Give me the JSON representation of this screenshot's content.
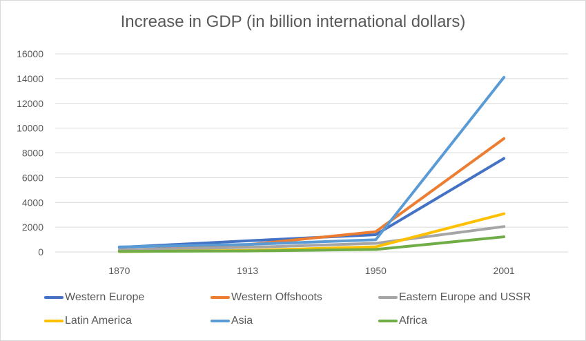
{
  "chart_data": {
    "type": "line",
    "title": "Increase in GDP (in billion international dollars)",
    "xlabel": "",
    "ylabel": "",
    "categories": [
      "1870",
      "1913",
      "1950",
      "2001"
    ],
    "ylim": [
      0,
      16000
    ],
    "yticks": [
      "0",
      "2000",
      "4000",
      "6000",
      "8000",
      "10000",
      "12000",
      "14000",
      "16000"
    ],
    "grid": true,
    "legend_position": "bottom",
    "series": [
      {
        "name": "Western Europe",
        "color": "#4472C4",
        "values": [
          367,
          902,
          1396,
          7550
        ]
      },
      {
        "name": "Western Offshoots",
        "color": "#ED7D31",
        "values": [
          111,
          582,
          1635,
          9156
        ]
      },
      {
        "name": "Eastern Europe and USSR",
        "color": "#A5A5A5",
        "values": [
          172,
          367,
          696,
          2053
        ]
      },
      {
        "name": "Latin America",
        "color": "#FFC000",
        "values": [
          28,
          121,
          416,
          3087
        ]
      },
      {
        "name": "Asia",
        "color": "#5B9BD5",
        "values": [
          402,
          608,
          986,
          14106
        ]
      },
      {
        "name": "Africa",
        "color": "#70AD47",
        "values": [
          45,
          79,
          203,
          1223
        ]
      }
    ]
  }
}
